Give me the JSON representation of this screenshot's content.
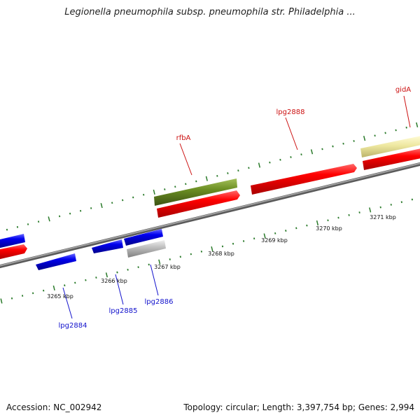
{
  "title": "Legionella pneumophila subsp. pneumophila str. Philadelphia ...",
  "footer": {
    "accession": "Accession: NC_002942",
    "summary": "Topology: circular; Length: 3,397,754 bp; Genes: 2,994"
  },
  "colors": {
    "backbone": "#8a8a8a",
    "tick_marks": "#2a7a2a",
    "forward_label": "#cc1111",
    "reverse_label": "#1111cc",
    "gene_red": "#ff0000",
    "gene_blue": "#0000ee",
    "gene_olive": "#6b8e23",
    "gene_grey": "#bdbdbd",
    "gene_khaki": "#eee8a0"
  },
  "scale_labels": [
    "3265 kbp",
    "3266 kbp",
    "3267 kbp",
    "3268 kbp",
    "3269 kbp",
    "3270 kbp",
    "3271 kbp"
  ],
  "gene_labels": {
    "forward": [
      "rfbA",
      "lpg2888",
      "gidA"
    ],
    "reverse": [
      "lpg2884",
      "lpg2885",
      "lpg2886"
    ]
  }
}
